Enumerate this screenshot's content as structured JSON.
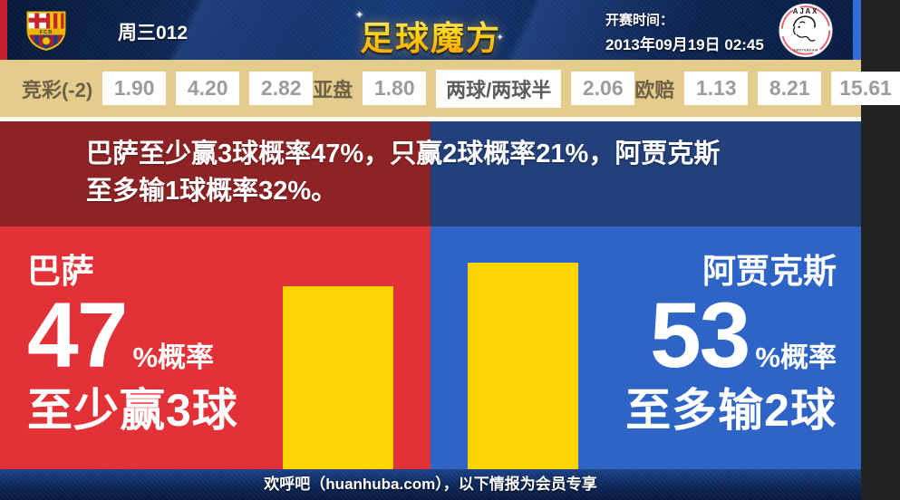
{
  "header": {
    "match_code": "周三012",
    "site_logo_text": "足球魔方",
    "kickoff_label": "开赛时间：",
    "kickoff_datetime": "2013年09月19日 02:45",
    "home_crest_text": "FCB",
    "away_crest_text": "AJAX",
    "away_crest_subtext": "AMSTERDAM"
  },
  "icons": {
    "sparkle": "✦"
  },
  "odds_bar": {
    "groups": [
      {
        "label": "竞彩(-2)",
        "values": [
          "1.90",
          "4.20",
          "2.82"
        ]
      },
      {
        "label": "亚盘",
        "values": [
          "1.80",
          "两球/两球半",
          "2.06"
        ]
      },
      {
        "label": "欧赔",
        "values": [
          "1.13",
          "8.21",
          "15.61"
        ]
      }
    ]
  },
  "summary": {
    "line1": "巴萨至少赢3球概率47%，只赢2球概率21%，阿贾克斯",
    "line2": "至多输1球概率32%。"
  },
  "chart_data": {
    "type": "bar",
    "categories": [
      "巴萨",
      "阿贾克斯"
    ],
    "values": [
      47,
      53
    ],
    "value_unit": "%",
    "ylim": [
      0,
      62
    ],
    "bar_color": "#ffd400",
    "annotations": [
      {
        "team": "巴萨",
        "percent": "47",
        "percent_suffix": "%概率",
        "outcome": "至少赢3球"
      },
      {
        "team": "阿贾克斯",
        "percent": "53",
        "percent_suffix": "%概率",
        "outcome": "至多输2球"
      }
    ]
  },
  "panels": {
    "left": {
      "team": "巴萨",
      "percent": "47",
      "suffix": "%概率",
      "outcome": "至少赢3球"
    },
    "right": {
      "team": "阿贾克斯",
      "percent": "53",
      "suffix": "%概率",
      "outcome": "至多输2球"
    }
  },
  "footer": {
    "text": "欢呼吧（huanhuba.com），以下情报为会员专享"
  },
  "colors": {
    "barca_bright_red": "#e23237",
    "barca_dark_red": "#8e2325",
    "ajax_bright_blue": "#2e64c6",
    "ajax_dark_navy": "#23407a",
    "bar_yellow": "#ffd400",
    "odds_bg_tan": "#e3cc8c",
    "logo_gold": "#ffc81e",
    "left_edge_red": "#c8202f",
    "right_edge_blue": "#2e6fd6"
  }
}
